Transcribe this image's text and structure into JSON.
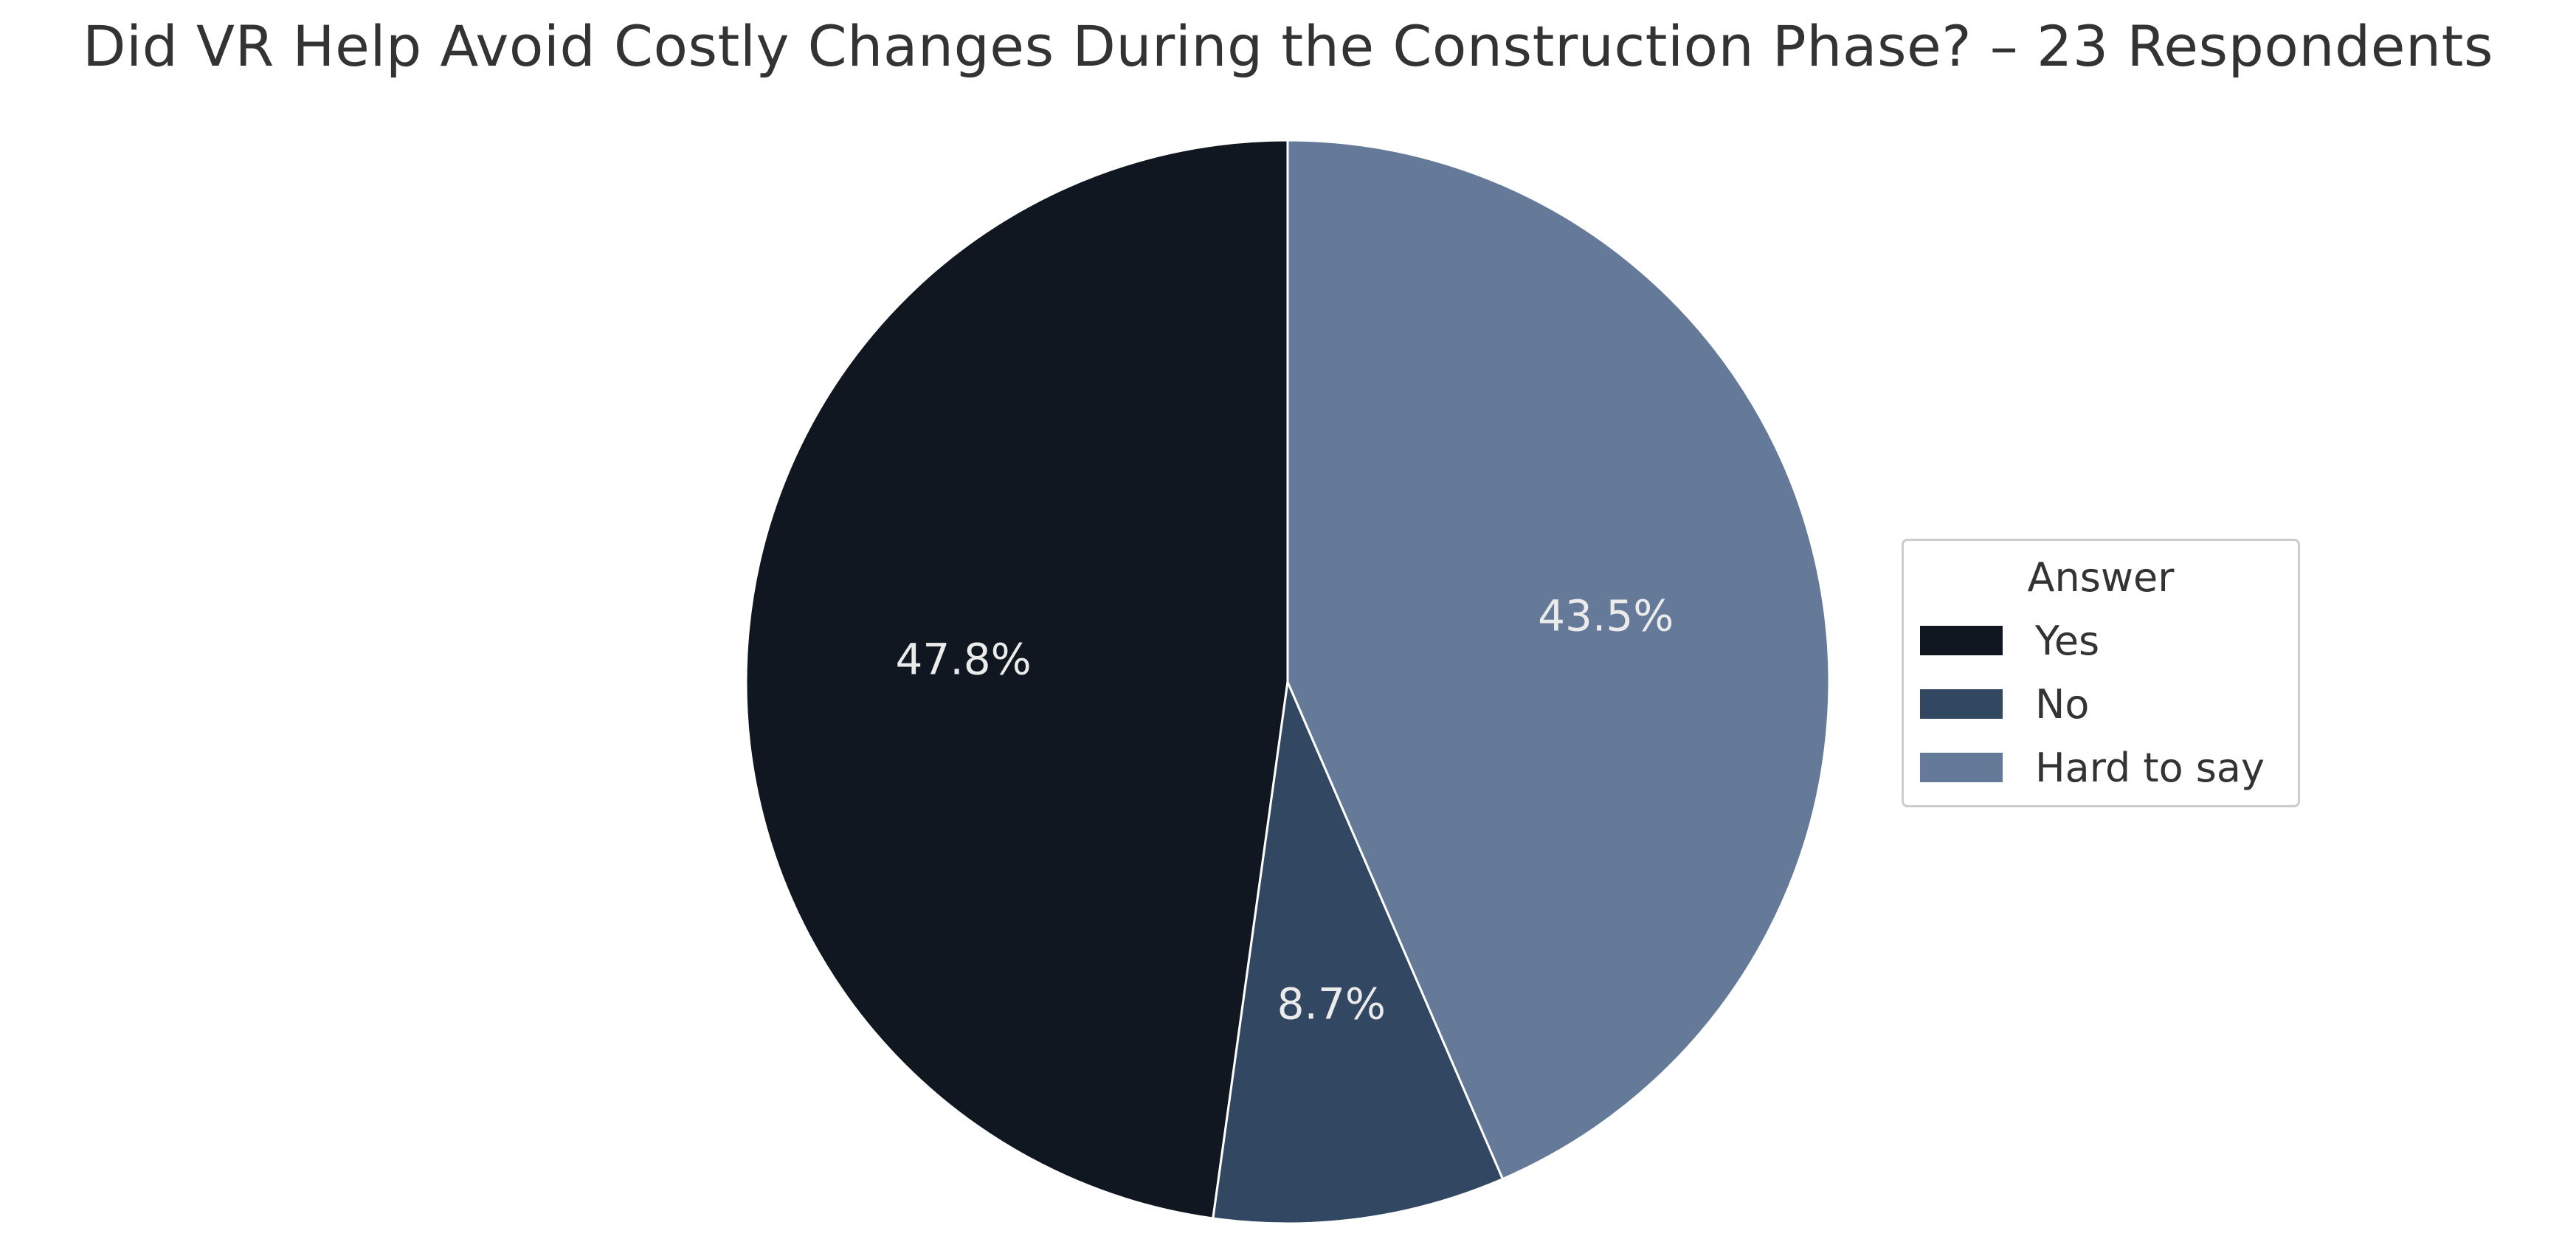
{
  "chart_data": {
    "type": "pie",
    "title": "Did VR Help Avoid Costly Changes During the Construction Phase? – 23 Respondents",
    "legend_title": "Answer",
    "legend_position": "right",
    "start_angle_deg": 90,
    "direction": "counterclockwise",
    "slices": [
      {
        "label": "Yes",
        "value": 47.8,
        "value_label": "47.8%",
        "color": "#111720"
      },
      {
        "label": "No",
        "value": 8.7,
        "value_label": "8.7%",
        "color": "#324762"
      },
      {
        "label": "Hard to say",
        "value": 43.5,
        "value_label": "43.5%",
        "color": "#647a98"
      }
    ]
  }
}
